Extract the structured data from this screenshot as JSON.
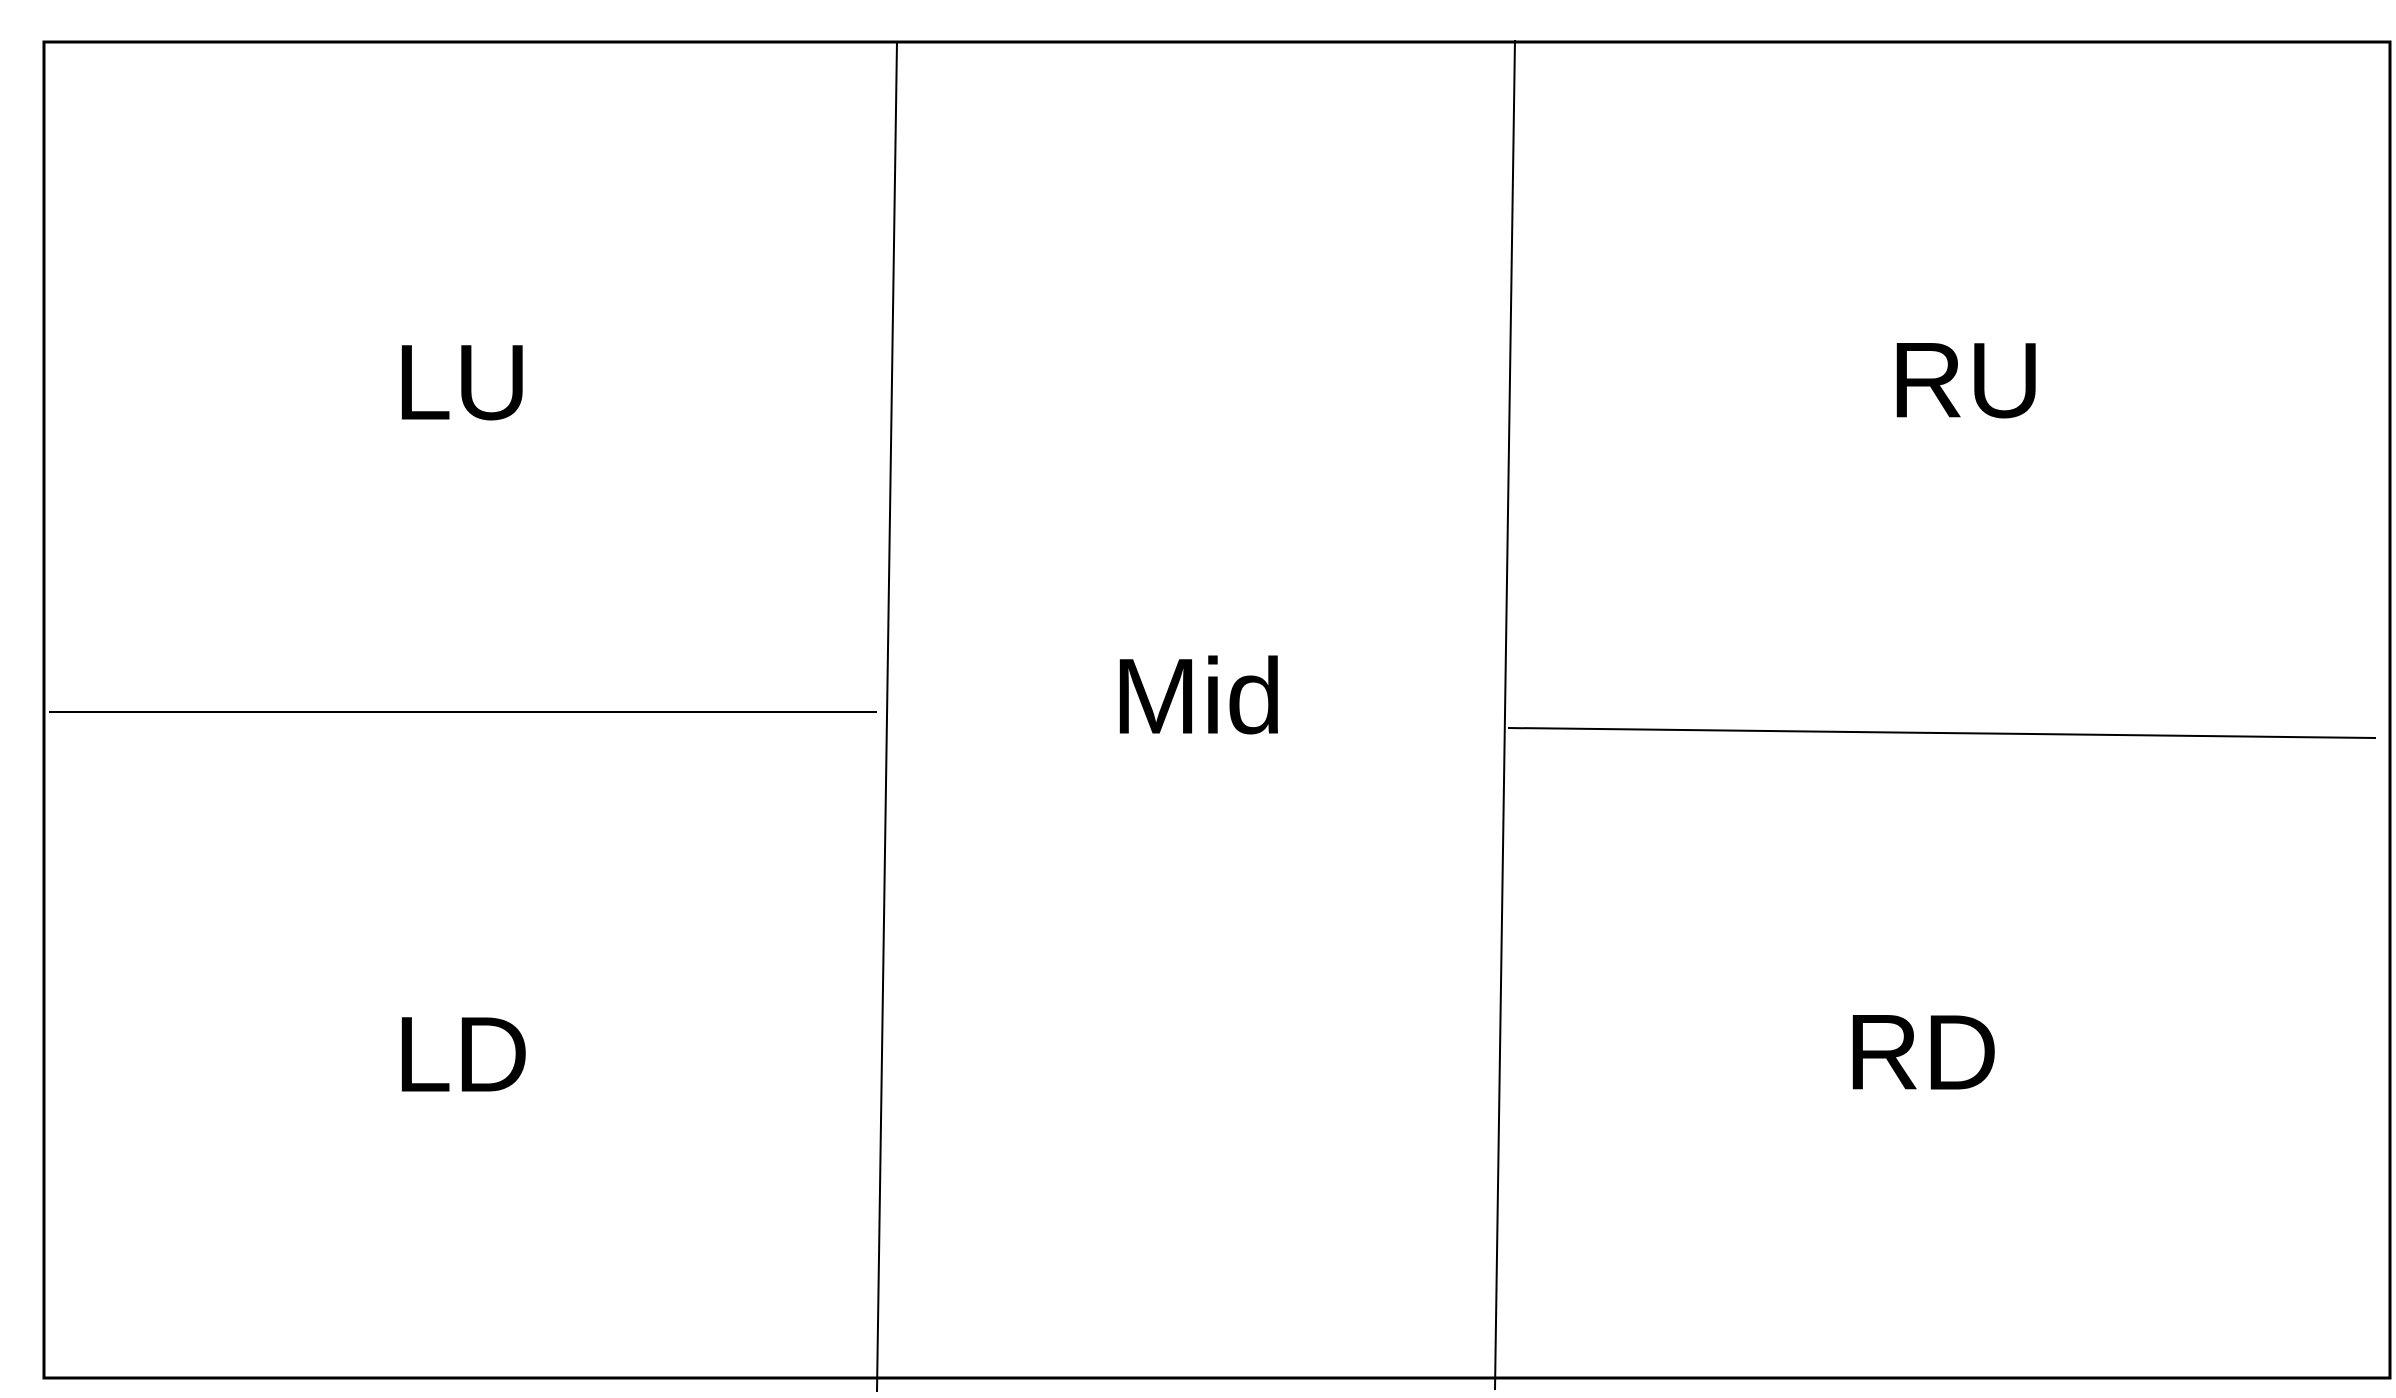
{
  "regions": {
    "left_upper": "LU",
    "left_lower": "LD",
    "middle": "Mid",
    "right_upper": "RU",
    "right_lower": "RD"
  },
  "colors": {
    "line": "#000000",
    "text": "#000000",
    "background": "#ffffff"
  }
}
